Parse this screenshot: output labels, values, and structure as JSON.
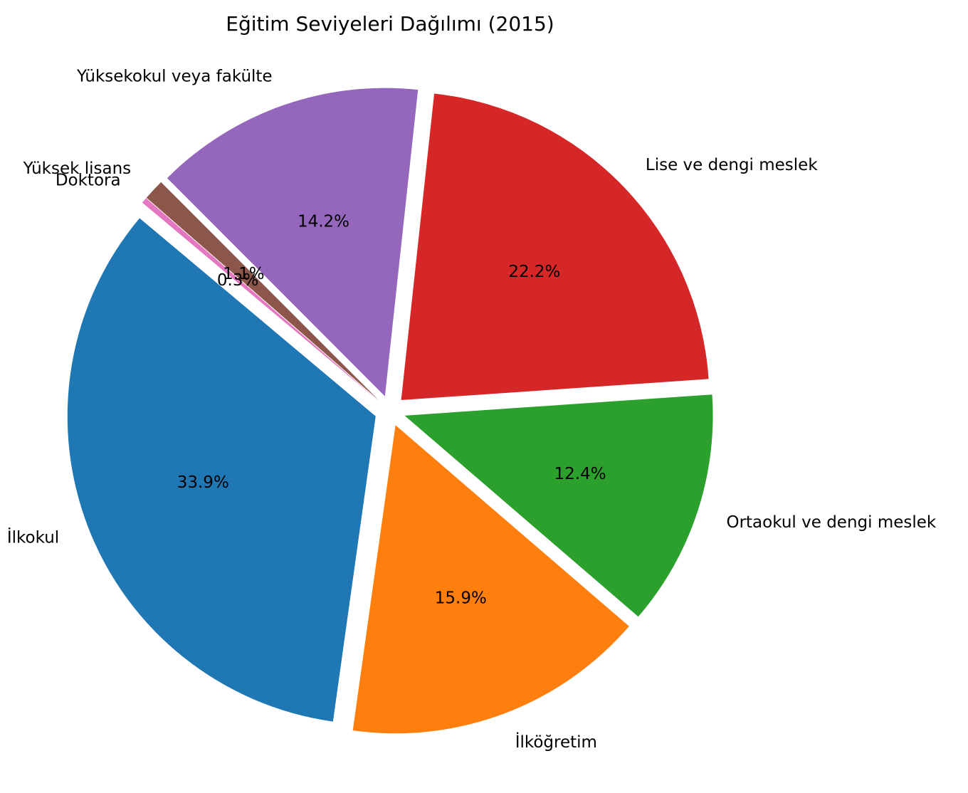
{
  "chart_data": {
    "type": "pie",
    "title": "Eğitim Seviyeleri Dağılımı (2015)",
    "slices": [
      {
        "label": "İlkokul",
        "percent": 33.9,
        "percent_label": "33.9%",
        "color": "#1f77b4"
      },
      {
        "label": "İlköğretim",
        "percent": 15.9,
        "percent_label": "15.9%",
        "color": "#ff7f0e"
      },
      {
        "label": "Ortaokul ve dengi meslek",
        "percent": 12.4,
        "percent_label": "12.4%",
        "color": "#2ca02c"
      },
      {
        "label": "Lise ve dengi meslek",
        "percent": 22.2,
        "percent_label": "22.2%",
        "color": "#d62728"
      },
      {
        "label": "Yüksekokul veya fakülte",
        "percent": 14.2,
        "percent_label": "14.2%",
        "color": "#9467bd"
      },
      {
        "label": "Yüksek lisans",
        "percent": 1.1,
        "percent_label": "1.1%",
        "color": "#8c564b"
      },
      {
        "label": "Doktora",
        "percent": 0.3,
        "percent_label": "0.3%",
        "color": "#e377c2"
      }
    ],
    "legend": "none"
  }
}
